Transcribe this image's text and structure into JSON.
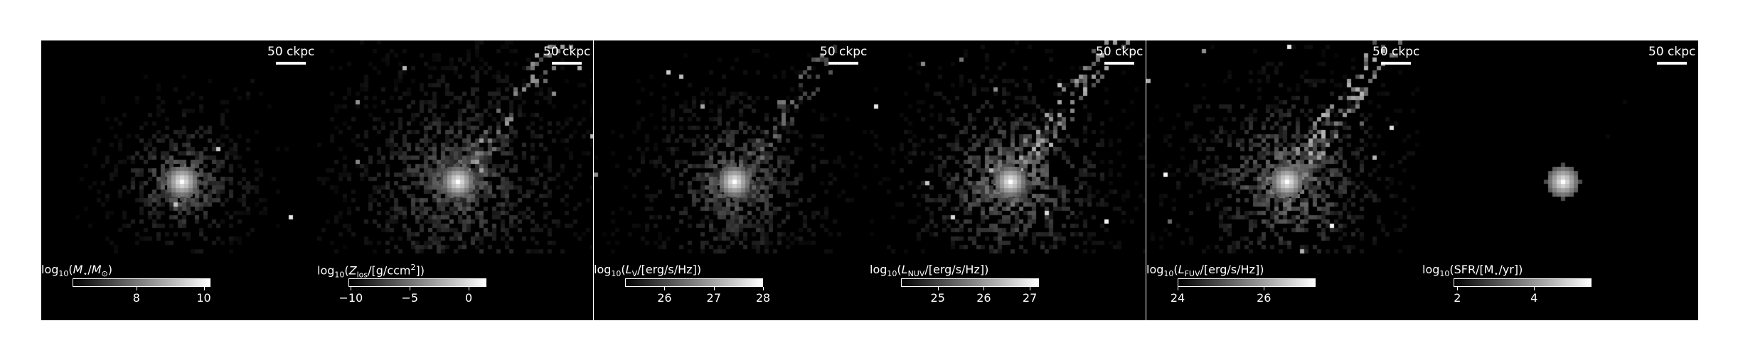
{
  "figure": {
    "background": "#ffffff",
    "panel_color": "#000000",
    "scale_text": "50 ckpc"
  },
  "panels": [
    {
      "quantity": "Stellar mass",
      "label_parts": [
        "log",
        "10",
        "(",
        "M",
        "⋆",
        "/",
        "M",
        "⊙",
        ")"
      ],
      "label_html": "log<sub>10</sub>(<i>M</i><sub>⋆</sub>/<i>M</i><sub>⊙</sub>)",
      "cbar_range": [
        6.1,
        10.2
      ],
      "ticks": [
        {
          "value": 8,
          "label": "8"
        },
        {
          "value": 10,
          "label": "10"
        }
      ],
      "map_style": {
        "core": 1.0,
        "halo": 0.55,
        "spread": 0.9,
        "streams": 0.1,
        "clumps": 0.2
      }
    },
    {
      "quantity": "Line-of-sight metal column density",
      "label_html": "log<sub>10</sub>(<i>Z</i><sub>los</sub>/[g/ccm<sup>2</sup>])",
      "cbar_range": [
        -10.2,
        1.5
      ],
      "ticks": [
        {
          "value": -10,
          "label": "−10"
        },
        {
          "value": -5,
          "label": "−5"
        },
        {
          "value": 0,
          "label": "0"
        }
      ],
      "map_style": {
        "core": 1.0,
        "halo": 0.45,
        "spread": 1.6,
        "streams": 0.8,
        "clumps": 0.4
      }
    },
    {
      "quantity": "V-band luminosity",
      "label_html": "log<sub>10</sub>(<i>L</i><sub>V</sub>/[erg/s/Hz])",
      "cbar_range": [
        25.2,
        28.0
      ],
      "ticks": [
        {
          "value": 26,
          "label": "26"
        },
        {
          "value": 27,
          "label": "27"
        },
        {
          "value": 28,
          "label": "28"
        }
      ],
      "map_style": {
        "core": 1.0,
        "halo": 0.5,
        "spread": 1.2,
        "streams": 0.6,
        "clumps": 0.5
      }
    },
    {
      "quantity": "NUV luminosity",
      "label_html": "log<sub>10</sub>(<i>L</i><sub>NUV</sub>/[erg/s/Hz])",
      "cbar_range": [
        24.2,
        27.2
      ],
      "ticks": [
        {
          "value": 25,
          "label": "25"
        },
        {
          "value": 26,
          "label": "26"
        },
        {
          "value": 27,
          "label": "27"
        }
      ],
      "map_style": {
        "core": 1.0,
        "halo": 0.6,
        "spread": 1.3,
        "streams": 0.9,
        "clumps": 0.8
      }
    },
    {
      "quantity": "FUV luminosity",
      "label_html": "log<sub>10</sub>(<i>L</i><sub>FUV</sub>/[erg/s/Hz])",
      "cbar_range": [
        24.0,
        27.2
      ],
      "ticks": [
        {
          "value": 24,
          "label": "24"
        },
        {
          "value": 26,
          "label": "26"
        }
      ],
      "map_style": {
        "core": 1.0,
        "halo": 0.6,
        "spread": 1.3,
        "streams": 0.9,
        "clumps": 0.8
      }
    },
    {
      "quantity": "Star formation rate",
      "label_html": "log<sub>10</sub>(SFR/[M<sub>⋆</sub>/yr])",
      "cbar_range": [
        1.9,
        5.5
      ],
      "ticks": [
        {
          "value": 2,
          "label": "2"
        },
        {
          "value": 4,
          "label": "4"
        }
      ],
      "map_style": {
        "core": 1.0,
        "halo": 0.05,
        "spread": 0.2,
        "streams": 0.05,
        "clumps": 0.0
      }
    }
  ]
}
